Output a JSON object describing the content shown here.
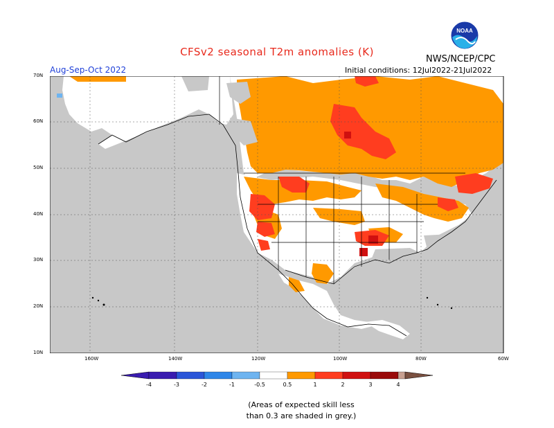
{
  "header": {
    "title": "CFSv2 seasonal T2m anomalies (K)",
    "org": "NWS/NCEP/CPC",
    "logo_text": "NOAA",
    "season": "Aug-Sep-Oct 2022",
    "initial_conditions": "Initial conditions: 12Jul2022-21Jul2022"
  },
  "map": {
    "lat_labels": [
      "70N",
      "60N",
      "50N",
      "40N",
      "30N",
      "20N",
      "10N"
    ],
    "lon_labels": [
      "160W",
      "140W",
      "120W",
      "100W",
      "80W",
      "60W"
    ]
  },
  "colorbar": {
    "labels": [
      "-4",
      "-3",
      "-2",
      "-1",
      "-0.5",
      "0.5",
      "1",
      "2",
      "3",
      "4"
    ],
    "colors": [
      "#3a1cb0",
      "#2b56d8",
      "#2e86e8",
      "#6eb4f0",
      "#ffffff",
      "#ff9900",
      "#ff3d1f",
      "#d01010",
      "#9a0a0a",
      "#c8a091",
      "#7a5040"
    ]
  },
  "legend_colors": {
    "grey_low_skill": "#c8c8c8",
    "land_neutral": "#ffffff",
    "water": "#c8c8c8"
  },
  "note": {
    "line1": "(Areas of expected skill less",
    "line2": "than 0.3 are shaded in grey.)"
  }
}
